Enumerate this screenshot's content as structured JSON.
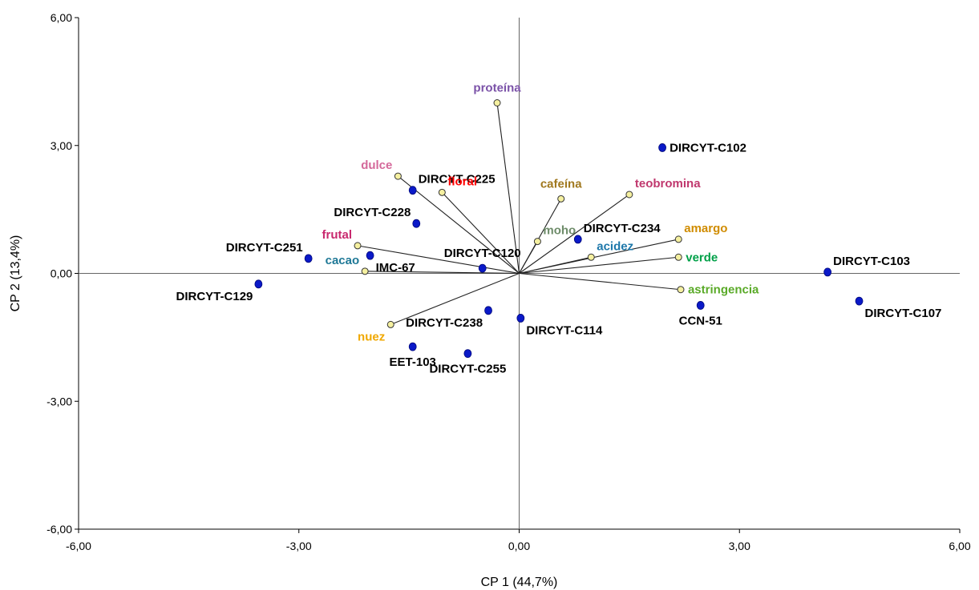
{
  "chart_data": {
    "type": "scatter",
    "subtype": "biplot",
    "title": "",
    "xlabel": "CP 1 (44,7%)",
    "ylabel": "CP 2 (13,4%)",
    "xlim": [
      -6,
      6
    ],
    "ylim": [
      -6,
      6
    ],
    "x_ticks": [
      {
        "value": -6,
        "label": "-6,00"
      },
      {
        "value": -3,
        "label": "-3,00"
      },
      {
        "value": 0,
        "label": "0,00"
      },
      {
        "value": 3,
        "label": "3,00"
      },
      {
        "value": 6,
        "label": "6,00"
      }
    ],
    "y_ticks": [
      {
        "value": -6,
        "label": "-6,00"
      },
      {
        "value": -3,
        "label": "-3,00"
      },
      {
        "value": 0,
        "label": "0,00"
      },
      {
        "value": 3,
        "label": "3,00"
      },
      {
        "value": 6,
        "label": "6,00"
      }
    ],
    "grid": false,
    "observation_color": "#0a19c8",
    "variable_point_color": "#f5f0a0",
    "observations": [
      {
        "label": "DIRCYT-C102",
        "x": 1.95,
        "y": 2.95,
        "pos": "r"
      },
      {
        "label": "DIRCYT-C225",
        "x": -1.45,
        "y": 1.95,
        "pos": "tr"
      },
      {
        "label": "DIRCYT-C228",
        "x": -1.4,
        "y": 1.17,
        "pos": "tl"
      },
      {
        "label": "DIRCYT-C234",
        "x": 0.8,
        "y": 0.8,
        "pos": "tr"
      },
      {
        "label": "DIRCYT-C251",
        "x": -2.87,
        "y": 0.35,
        "pos": "tl"
      },
      {
        "label": "IMC-67",
        "x": -2.03,
        "y": 0.42,
        "pos": "br"
      },
      {
        "label": "DIRCYT-C120",
        "x": -0.5,
        "y": 0.12,
        "pos": "tc"
      },
      {
        "label": "DIRCYT-C103",
        "x": 4.2,
        "y": 0.03,
        "pos": "tr"
      },
      {
        "label": "DIRCYT-C129",
        "x": -3.55,
        "y": -0.25,
        "pos": "bl"
      },
      {
        "label": "DIRCYT-C107",
        "x": 4.63,
        "y": -0.65,
        "pos": "br"
      },
      {
        "label": "CCN-51",
        "x": 2.47,
        "y": -0.75,
        "pos": "bc"
      },
      {
        "label": "DIRCYT-C238",
        "x": -0.42,
        "y": -0.87,
        "pos": "bl"
      },
      {
        "label": "DIRCYT-C114",
        "x": 0.02,
        "y": -1.05,
        "pos": "br"
      },
      {
        "label": "EET-103",
        "x": -1.45,
        "y": -1.72,
        "pos": "bc"
      },
      {
        "label": "DIRCYT-C255",
        "x": -0.7,
        "y": -1.88,
        "pos": "bc"
      }
    ],
    "variables": [
      {
        "label": "proteína",
        "x": -0.3,
        "y": 4.0,
        "color": "#7b52a8",
        "pos": "tc"
      },
      {
        "label": "dulce",
        "x": -1.65,
        "y": 2.28,
        "color": "#d4689a",
        "pos": "tl"
      },
      {
        "label": "floral",
        "x": -1.05,
        "y": 1.9,
        "color": "#ff0000",
        "pos": "tr"
      },
      {
        "label": "cafeína",
        "x": 0.57,
        "y": 1.75,
        "color": "#a0781e",
        "pos": "tc"
      },
      {
        "label": "teobromina",
        "x": 1.5,
        "y": 1.85,
        "color": "#c0386e",
        "pos": "tr"
      },
      {
        "label": "moho",
        "x": 0.25,
        "y": 0.75,
        "color": "#6e8c6a",
        "pos": "tr"
      },
      {
        "label": "amargo",
        "x": 2.17,
        "y": 0.8,
        "color": "#d08c00",
        "pos": "tr"
      },
      {
        "label": "acidez",
        "x": 0.98,
        "y": 0.38,
        "color": "#1e78aa",
        "pos": "tr"
      },
      {
        "label": "verde",
        "x": 2.17,
        "y": 0.38,
        "color": "#00a048",
        "pos": "r"
      },
      {
        "label": "frutal",
        "x": -2.2,
        "y": 0.65,
        "color": "#c8286e",
        "pos": "tl"
      },
      {
        "label": "cacao",
        "x": -2.1,
        "y": 0.05,
        "color": "#1e7896",
        "pos": "tl"
      },
      {
        "label": "astringencia",
        "x": 2.2,
        "y": -0.38,
        "color": "#5aaa28",
        "pos": "r"
      },
      {
        "label": "nuez",
        "x": -1.75,
        "y": -1.2,
        "color": "#f0a800",
        "pos": "bl"
      }
    ]
  }
}
